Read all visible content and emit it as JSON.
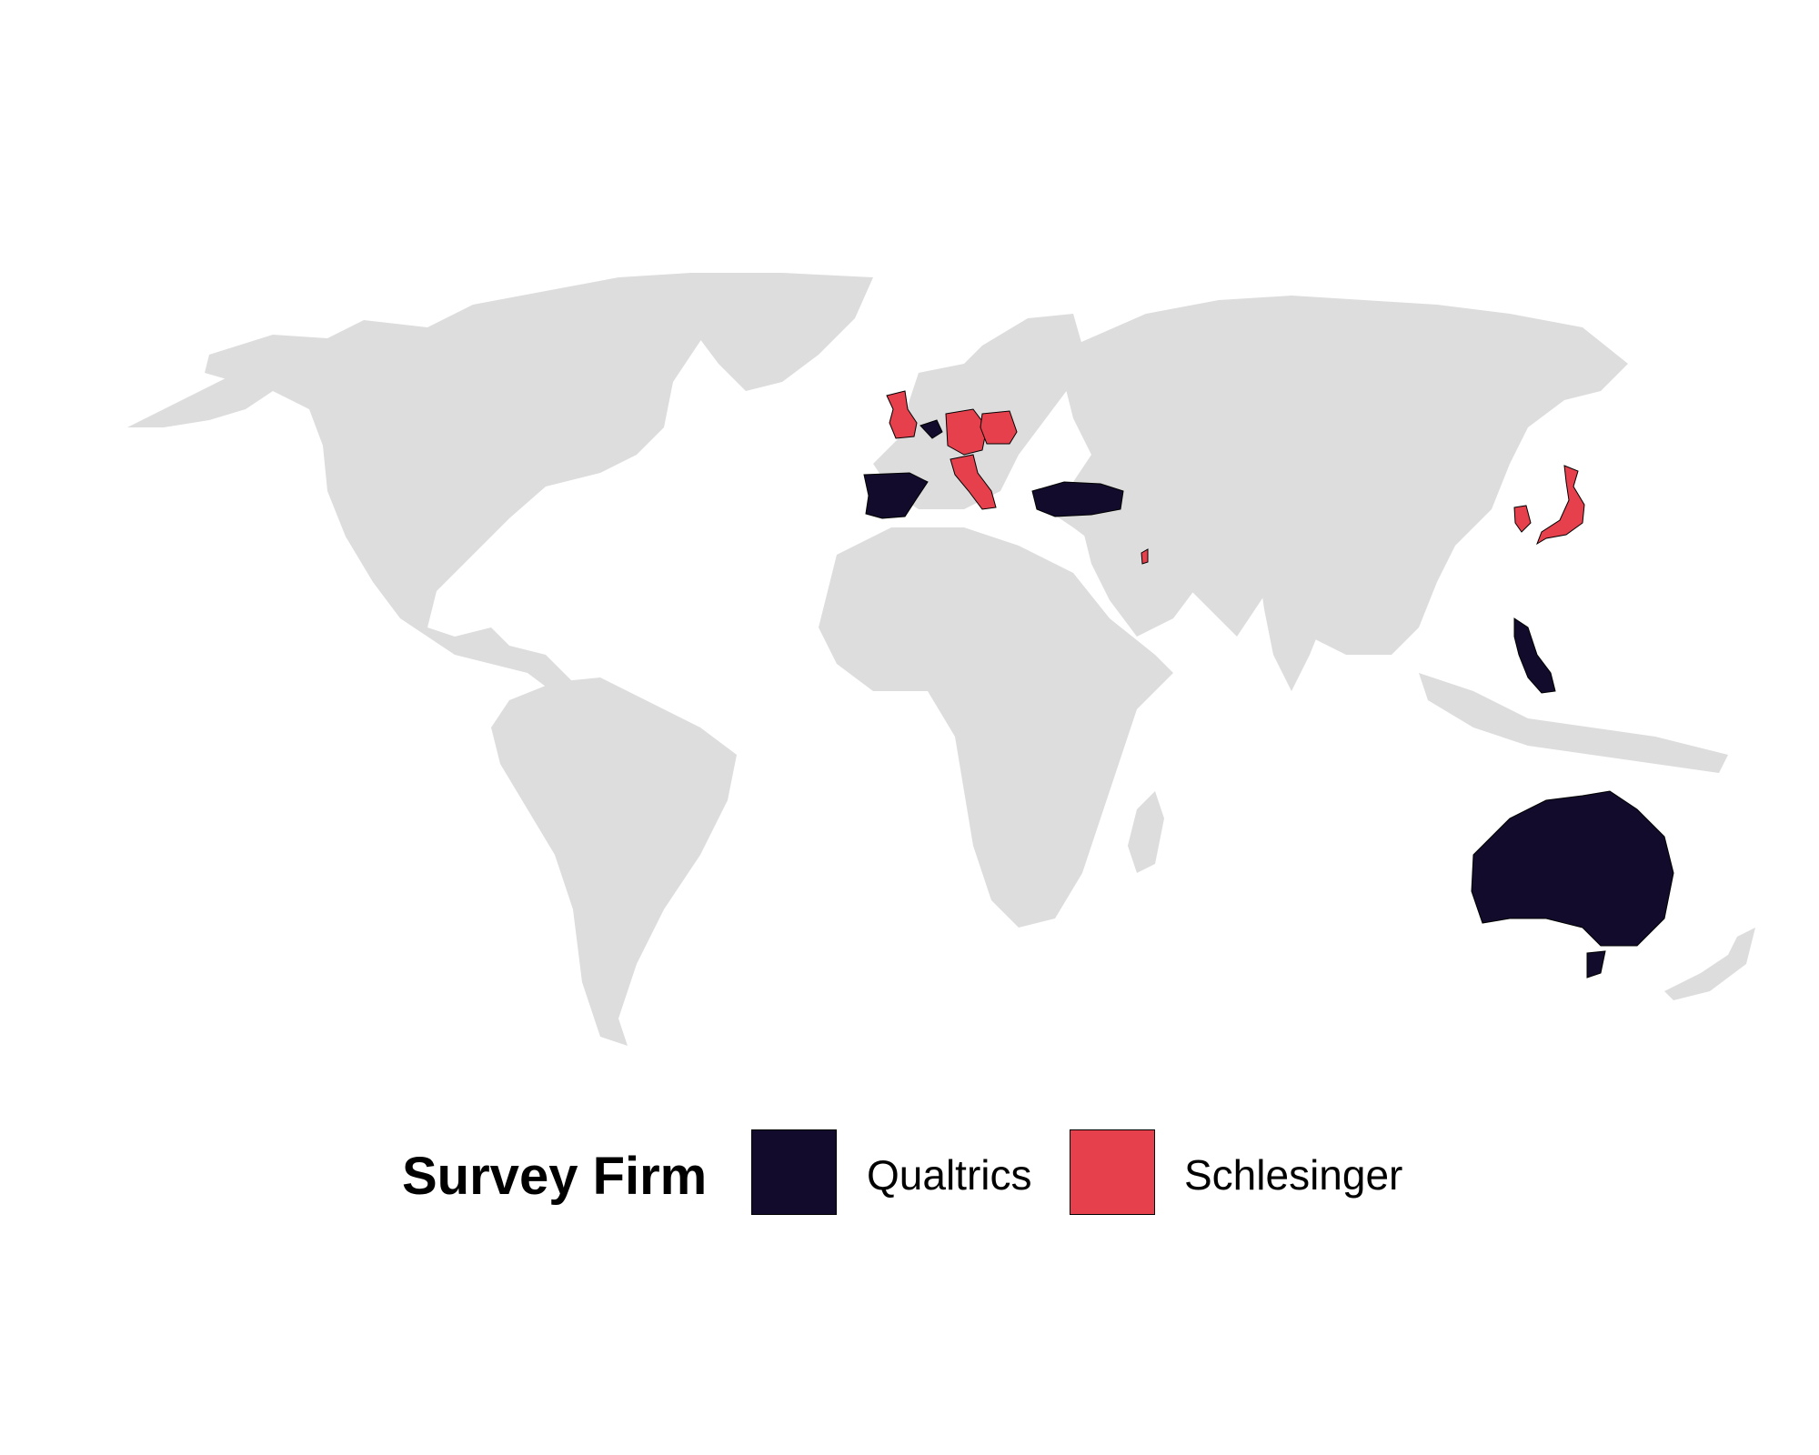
{
  "legend": {
    "title": "Survey Firm",
    "items": [
      {
        "label": "Qualtrics",
        "color": "#120b2b"
      },
      {
        "label": "Schlesinger",
        "color": "#e6404d"
      }
    ]
  },
  "map": {
    "base_color": "#dddddd",
    "qualtrics_countries": [
      "Spain",
      "Belgium",
      "Turkey",
      "Philippines",
      "Australia"
    ],
    "schlesinger_countries": [
      "United Kingdom",
      "Germany",
      "Poland",
      "Switzerland",
      "Italy",
      "Israel",
      "South Korea",
      "Japan"
    ]
  }
}
